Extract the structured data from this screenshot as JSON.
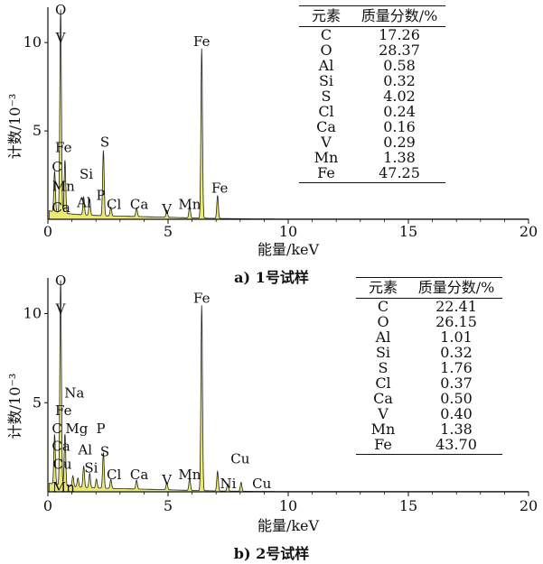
{
  "chart_data": [
    {
      "type": "line",
      "caption": "a) 1号试样",
      "xlabel": "能量/keV",
      "ylabel": "计数/10⁻³",
      "xlim": [
        0,
        20
      ],
      "ylim": [
        0,
        12
      ],
      "xticks": [
        0,
        5,
        10,
        15,
        20
      ],
      "yticks": [
        5,
        10
      ],
      "peaks": [
        {
          "energy": 0.28,
          "counts": 2.3
        },
        {
          "energy": 0.53,
          "counts": 11.5
        },
        {
          "energy": 0.71,
          "counts": 3.0
        },
        {
          "energy": 1.49,
          "counts": 1.0
        },
        {
          "energy": 1.74,
          "counts": 0.9
        },
        {
          "energy": 2.31,
          "counts": 3.7
        },
        {
          "energy": 2.62,
          "counts": 0.5
        },
        {
          "energy": 3.69,
          "counts": 0.5
        },
        {
          "energy": 4.95,
          "counts": 0.4
        },
        {
          "energy": 5.9,
          "counts": 0.7
        },
        {
          "energy": 6.4,
          "counts": 9.6
        },
        {
          "energy": 7.06,
          "counts": 1.3
        }
      ],
      "labels": [
        {
          "text": "O",
          "energy": 0.53,
          "counts": 11.6
        },
        {
          "text": "V",
          "energy": 0.53,
          "counts": 10.0
        },
        {
          "text": "Fe",
          "energy": 0.65,
          "counts": 3.8
        },
        {
          "text": "C",
          "energy": 0.38,
          "counts": 2.7
        },
        {
          "text": "Mn",
          "energy": 0.65,
          "counts": 1.6
        },
        {
          "text": "Ca",
          "energy": 0.55,
          "counts": 0.4
        },
        {
          "text": "Al",
          "energy": 1.5,
          "counts": 0.7
        },
        {
          "text": "Si",
          "energy": 1.6,
          "counts": 2.3
        },
        {
          "text": "P",
          "energy": 2.2,
          "counts": 1.1
        },
        {
          "text": "S",
          "energy": 2.37,
          "counts": 4.1
        },
        {
          "text": "Cl",
          "energy": 2.75,
          "counts": 0.6
        },
        {
          "text": "Ca",
          "energy": 3.8,
          "counts": 0.6
        },
        {
          "text": "V",
          "energy": 4.95,
          "counts": 0.3
        },
        {
          "text": "Mn",
          "energy": 5.9,
          "counts": 0.6
        },
        {
          "text": "Fe",
          "energy": 6.4,
          "counts": 9.8
        },
        {
          "text": "Fe",
          "energy": 7.15,
          "counts": 1.5
        }
      ],
      "table": {
        "headers": [
          "元素",
          "质量分数/%"
        ],
        "rows": [
          [
            "C",
            "17.26"
          ],
          [
            "O",
            "28.37"
          ],
          [
            "Al",
            "0.58"
          ],
          [
            "Si",
            "0.32"
          ],
          [
            "S",
            "4.02"
          ],
          [
            "Cl",
            "0.24"
          ],
          [
            "Ca",
            "0.16"
          ],
          [
            "V",
            "0.29"
          ],
          [
            "Mn",
            "1.38"
          ],
          [
            "Fe",
            "47.25"
          ]
        ]
      }
    },
    {
      "type": "line",
      "caption": "b) 2号试样",
      "xlabel": "能量/keV",
      "ylabel": "计数/10⁻³",
      "xlim": [
        0,
        20
      ],
      "ylim": [
        0,
        12
      ],
      "xticks": [
        0,
        5,
        10,
        15,
        20
      ],
      "yticks": [
        5,
        10
      ],
      "peaks": [
        {
          "energy": 0.28,
          "counts": 2.8
        },
        {
          "energy": 0.53,
          "counts": 11.5
        },
        {
          "energy": 0.71,
          "counts": 2.9
        },
        {
          "energy": 1.04,
          "counts": 0.6
        },
        {
          "energy": 1.25,
          "counts": 0.5
        },
        {
          "energy": 1.49,
          "counts": 1.2
        },
        {
          "energy": 1.74,
          "counts": 0.8
        },
        {
          "energy": 2.02,
          "counts": 0.5
        },
        {
          "energy": 2.31,
          "counts": 2.0
        },
        {
          "energy": 2.62,
          "counts": 0.5
        },
        {
          "energy": 3.69,
          "counts": 0.5
        },
        {
          "energy": 4.95,
          "counts": 0.4
        },
        {
          "energy": 5.9,
          "counts": 0.7
        },
        {
          "energy": 6.4,
          "counts": 10.4
        },
        {
          "energy": 7.06,
          "counts": 1.1
        },
        {
          "energy": 7.48,
          "counts": 0.4
        },
        {
          "energy": 8.04,
          "counts": 0.5
        }
      ],
      "labels": [
        {
          "text": "O",
          "energy": 0.53,
          "counts": 11.6
        },
        {
          "text": "V",
          "energy": 0.53,
          "counts": 10.0
        },
        {
          "text": "Na",
          "energy": 1.1,
          "counts": 5.3
        },
        {
          "text": "Fe",
          "energy": 0.65,
          "counts": 4.3
        },
        {
          "text": "C",
          "energy": 0.38,
          "counts": 3.3
        },
        {
          "text": "Mg",
          "energy": 1.2,
          "counts": 3.3
        },
        {
          "text": "P",
          "energy": 2.2,
          "counts": 3.3
        },
        {
          "text": "Ca",
          "energy": 0.55,
          "counts": 2.3
        },
        {
          "text": "Al",
          "energy": 1.55,
          "counts": 2.1
        },
        {
          "text": "S",
          "energy": 2.37,
          "counts": 2.0
        },
        {
          "text": "Cu",
          "energy": 0.6,
          "counts": 1.3
        },
        {
          "text": "Si",
          "energy": 1.8,
          "counts": 1.1
        },
        {
          "text": "Mn",
          "energy": 0.65,
          "counts": 0.0
        },
        {
          "text": "Cl",
          "energy": 2.75,
          "counts": 0.7
        },
        {
          "text": "Ca",
          "energy": 3.8,
          "counts": 0.7
        },
        {
          "text": "V",
          "energy": 4.95,
          "counts": 0.4
        },
        {
          "text": "Mn",
          "energy": 5.9,
          "counts": 0.7
        },
        {
          "text": "Fe",
          "energy": 6.4,
          "counts": 10.6
        },
        {
          "text": "Cu",
          "energy": 8.0,
          "counts": 1.6
        },
        {
          "text": "Ni",
          "energy": 7.5,
          "counts": 0.2
        },
        {
          "text": "Cu",
          "energy": 8.9,
          "counts": 0.2
        }
      ],
      "table": {
        "headers": [
          "元素",
          "质量分数/%"
        ],
        "rows": [
          [
            "C",
            "22.41"
          ],
          [
            "O",
            "26.15"
          ],
          [
            "Al",
            "1.01"
          ],
          [
            "Si",
            "0.32"
          ],
          [
            "S",
            "1.76"
          ],
          [
            "Cl",
            "0.37"
          ],
          [
            "Ca",
            "0.50"
          ],
          [
            "V",
            "0.40"
          ],
          [
            "Mn",
            "1.38"
          ],
          [
            "Fe",
            "43.70"
          ]
        ]
      }
    }
  ],
  "colors": {
    "fill": "#ecea6e",
    "line": "#222222"
  }
}
